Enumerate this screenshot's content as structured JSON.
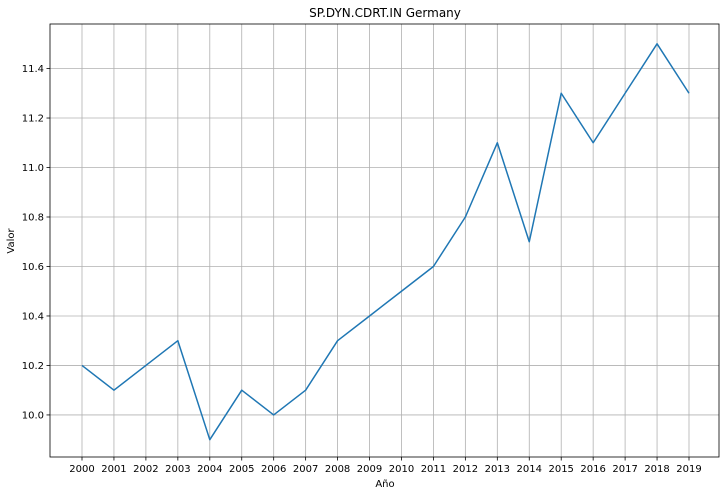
{
  "chart_data": {
    "type": "line",
    "title": "SP.DYN.CDRT.IN Germany",
    "xlabel": "Año",
    "ylabel": "Valor",
    "grid": true,
    "color": "#1f77b4",
    "x": [
      "2000",
      "2001",
      "2002",
      "2003",
      "2004",
      "2005",
      "2006",
      "2007",
      "2008",
      "2009",
      "2010",
      "2011",
      "2012",
      "2013",
      "2014",
      "2015",
      "2016",
      "2017",
      "2018",
      "2019"
    ],
    "y": [
      10.2,
      10.1,
      10.2,
      10.3,
      9.9,
      10.1,
      10.0,
      10.1,
      10.3,
      10.4,
      10.5,
      10.6,
      10.8,
      11.1,
      10.7,
      11.3,
      11.1,
      11.3,
      11.5,
      11.3
    ],
    "yticks": [
      "10.0",
      "10.2",
      "10.4",
      "10.6",
      "10.8",
      "11.0",
      "11.2",
      "11.4"
    ],
    "ylim": [
      9.83,
      11.58
    ]
  }
}
